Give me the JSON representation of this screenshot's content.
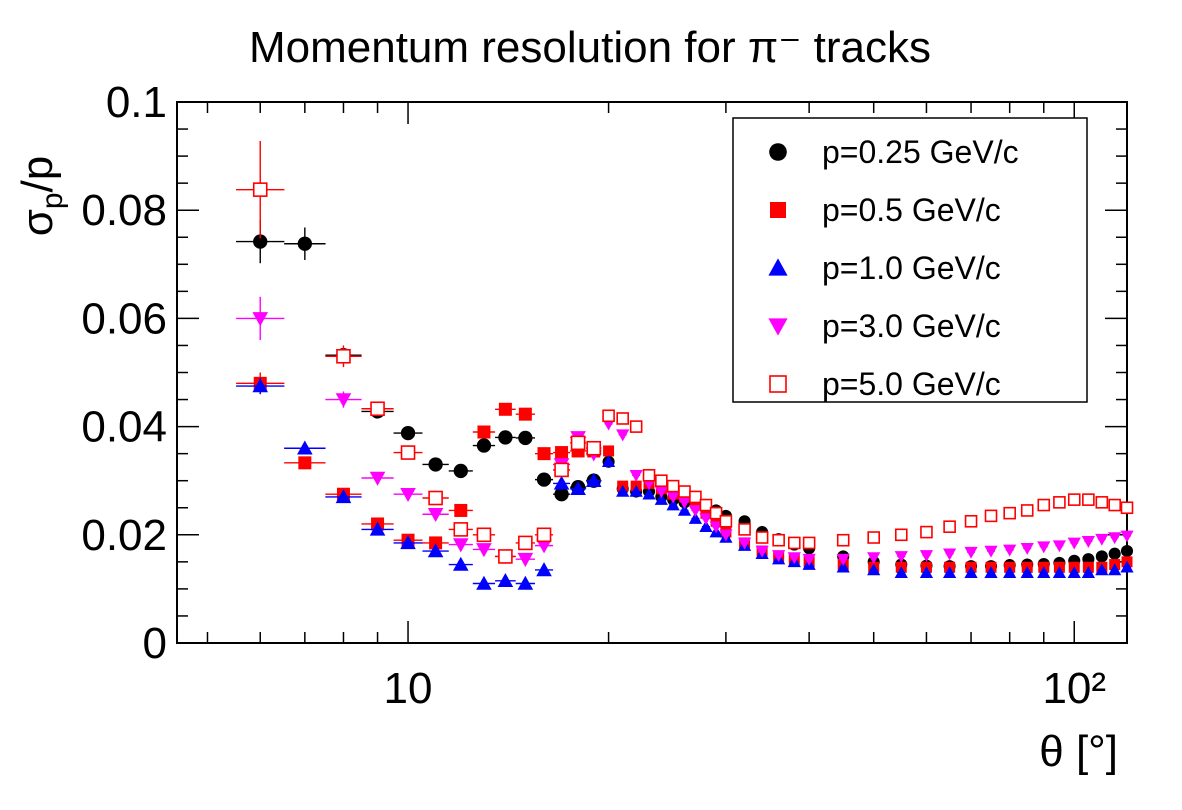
{
  "chart_data": {
    "type": "scatter",
    "title": "Momentum resolution for π⁻ tracks",
    "xlabel": "θ [°]",
    "ylabel": "σp/p",
    "ylabel_main": "σ",
    "ylabel_sub": "p",
    "ylabel_tail": "/p",
    "xscale": "log",
    "xlim": [
      4.5,
      120
    ],
    "ylim": [
      0,
      0.1
    ],
    "grid": false,
    "legend_position": "top-right",
    "y_ticks": [
      "0",
      "0.02",
      "0.04",
      "0.06",
      "0.08",
      "0.1"
    ],
    "x_tick_labels": [
      "10",
      "10²"
    ],
    "series": [
      {
        "name": "p=0.25 GeV/c",
        "color": "#000000",
        "marker": "circle",
        "x": [
          6,
          7,
          8,
          9,
          10,
          11,
          12,
          13,
          14,
          15,
          16,
          17,
          18,
          19,
          20,
          21,
          22,
          23,
          24,
          25,
          26,
          27,
          28,
          29,
          30,
          32,
          34,
          36,
          38,
          40,
          45,
          50,
          55,
          60,
          65,
          70,
          75,
          80,
          85,
          90,
          95,
          100,
          105,
          110,
          115,
          120
        ],
        "y": [
          0.0742,
          0.0738,
          0.0532,
          0.0428,
          0.0388,
          0.033,
          0.0318,
          0.0365,
          0.038,
          0.0379,
          0.0302,
          0.0275,
          0.0288,
          0.03,
          0.0335,
          0.0285,
          0.028,
          0.028,
          0.027,
          0.0265,
          0.026,
          0.0255,
          0.025,
          0.0245,
          0.0235,
          0.0225,
          0.0205,
          0.0192,
          0.0182,
          0.0175,
          0.016,
          0.015,
          0.0145,
          0.0143,
          0.0142,
          0.0142,
          0.0142,
          0.0144,
          0.0145,
          0.0146,
          0.0148,
          0.0152,
          0.0155,
          0.016,
          0.0165,
          0.017
        ],
        "yerr": [
          0.004,
          0.003,
          0.001,
          0.0008,
          0.0008,
          0.0006,
          0.0006,
          0.0006,
          0.0006,
          0.0006,
          0.0006,
          0.0005,
          0.0005,
          0.0005,
          0.0005,
          0.0005,
          0.0005,
          0.0005,
          0.0005,
          0.0005,
          0.0005,
          0.0005,
          0.0005,
          0.0005,
          0.0005,
          0.0004,
          0.0004,
          0.0004,
          0.0004,
          0.0004,
          0.0004,
          0.0004,
          0.0004,
          0.0004,
          0.0004,
          0.0004,
          0.0004,
          0.0004,
          0.0004,
          0.0004,
          0.0004,
          0.0004,
          0.0004,
          0.0004,
          0.0004,
          0.0004
        ]
      },
      {
        "name": "p=0.5 GeV/c",
        "color": "#ff0000",
        "marker": "square",
        "x": [
          6,
          7,
          8,
          9,
          10,
          11,
          12,
          13,
          14,
          15,
          16,
          17,
          18,
          19,
          20,
          21,
          22,
          23,
          24,
          25,
          26,
          27,
          28,
          29,
          30,
          32,
          34,
          36,
          38,
          40,
          45,
          50,
          55,
          60,
          65,
          70,
          75,
          80,
          85,
          90,
          95,
          100,
          105,
          110,
          115,
          120
        ],
        "y": [
          0.048,
          0.0333,
          0.0275,
          0.022,
          0.019,
          0.0185,
          0.0245,
          0.039,
          0.0432,
          0.0423,
          0.035,
          0.0352,
          0.0355,
          0.0355,
          0.0355,
          0.029,
          0.029,
          0.0295,
          0.0285,
          0.0275,
          0.027,
          0.026,
          0.024,
          0.0225,
          0.0205,
          0.0185,
          0.017,
          0.016,
          0.0155,
          0.015,
          0.0145,
          0.014,
          0.014,
          0.014,
          0.014,
          0.014,
          0.014,
          0.014,
          0.014,
          0.014,
          0.014,
          0.014,
          0.014,
          0.014,
          0.0145,
          0.015
        ],
        "yerr": [
          0.002,
          0.001,
          0.0008,
          0.0006,
          0.0006,
          0.0006,
          0.0006,
          0.0008,
          0.0008,
          0.0008,
          0.0006,
          0.0006,
          0.0006,
          0.0006,
          0.0006,
          0.0005,
          0.0005,
          0.0005,
          0.0005,
          0.0005,
          0.0005,
          0.0005,
          0.0005,
          0.0005,
          0.0004,
          0.0004,
          0.0004,
          0.0004,
          0.0004,
          0.0004,
          0.0004,
          0.0004,
          0.0004,
          0.0004,
          0.0004,
          0.0004,
          0.0004,
          0.0004,
          0.0004,
          0.0004,
          0.0004,
          0.0004,
          0.0004,
          0.0004,
          0.0004,
          0.0004
        ]
      },
      {
        "name": "p=1.0 GeV/c",
        "color": "#0000ff",
        "marker": "triangle-up",
        "x": [
          6,
          7,
          8,
          9,
          10,
          11,
          12,
          13,
          14,
          15,
          16,
          17,
          18,
          19,
          20,
          21,
          22,
          23,
          24,
          25,
          26,
          27,
          28,
          29,
          30,
          32,
          34,
          36,
          38,
          40,
          45,
          50,
          55,
          60,
          65,
          70,
          75,
          80,
          85,
          90,
          95,
          100,
          105,
          110,
          115,
          120
        ],
        "y": [
          0.0475,
          0.036,
          0.027,
          0.021,
          0.0185,
          0.017,
          0.0145,
          0.011,
          0.0115,
          0.011,
          0.0135,
          0.0295,
          0.0285,
          0.03,
          0.0335,
          0.028,
          0.028,
          0.0275,
          0.0265,
          0.0255,
          0.0245,
          0.023,
          0.0215,
          0.0205,
          0.0195,
          0.018,
          0.0165,
          0.0155,
          0.015,
          0.0145,
          0.014,
          0.0135,
          0.013,
          0.013,
          0.013,
          0.013,
          0.013,
          0.013,
          0.013,
          0.013,
          0.013,
          0.013,
          0.013,
          0.0135,
          0.0135,
          0.014
        ],
        "yerr": [
          0.0015,
          0.001,
          0.0008,
          0.0006,
          0.0006,
          0.0006,
          0.0006,
          0.0006,
          0.0006,
          0.0006,
          0.0006,
          0.0005,
          0.0005,
          0.0005,
          0.0005,
          0.0005,
          0.0005,
          0.0005,
          0.0005,
          0.0005,
          0.0005,
          0.0005,
          0.0005,
          0.0005,
          0.0004,
          0.0004,
          0.0004,
          0.0004,
          0.0004,
          0.0004,
          0.0004,
          0.0004,
          0.0004,
          0.0004,
          0.0004,
          0.0004,
          0.0004,
          0.0004,
          0.0004,
          0.0004,
          0.0004,
          0.0004,
          0.0004,
          0.0004,
          0.0004,
          0.0004
        ]
      },
      {
        "name": "p=3.0 GeV/c",
        "color": "#ff00ff",
        "marker": "triangle-down",
        "x": [
          6,
          8,
          9,
          10,
          11,
          12,
          13,
          14,
          15,
          16,
          17,
          18,
          19,
          20,
          21,
          22,
          23,
          24,
          25,
          26,
          27,
          28,
          29,
          30,
          32,
          34,
          36,
          38,
          40,
          45,
          50,
          55,
          60,
          65,
          70,
          75,
          80,
          85,
          90,
          95,
          100,
          105,
          110,
          115,
          120
        ],
        "y": [
          0.06,
          0.045,
          0.0305,
          0.0275,
          0.0238,
          0.0182,
          0.0173,
          0.016,
          0.0155,
          0.018,
          0.033,
          0.038,
          0.035,
          0.0405,
          0.0385,
          0.031,
          0.0295,
          0.028,
          0.027,
          0.026,
          0.0245,
          0.023,
          0.0215,
          0.02,
          0.0185,
          0.017,
          0.0162,
          0.0158,
          0.0155,
          0.0155,
          0.0158,
          0.016,
          0.0162,
          0.0165,
          0.0168,
          0.017,
          0.0172,
          0.0175,
          0.0178,
          0.018,
          0.0185,
          0.0188,
          0.0192,
          0.0195,
          0.0198
        ],
        "yerr": [
          0.004,
          0.0015,
          0.0008,
          0.0008,
          0.0006,
          0.0006,
          0.0006,
          0.0006,
          0.0006,
          0.0006,
          0.0008,
          0.0008,
          0.0008,
          0.0008,
          0.0008,
          0.0006,
          0.0006,
          0.0006,
          0.0005,
          0.0005,
          0.0005,
          0.0005,
          0.0005,
          0.0005,
          0.0004,
          0.0004,
          0.0004,
          0.0004,
          0.0004,
          0.0004,
          0.0004,
          0.0004,
          0.0004,
          0.0004,
          0.0004,
          0.0004,
          0.0004,
          0.0004,
          0.0004,
          0.0004,
          0.0004,
          0.0004,
          0.0004,
          0.0004,
          0.0004
        ]
      },
      {
        "name": "p=5.0 GeV/c",
        "color": "#ff0000",
        "marker": "open-square",
        "x": [
          6,
          8,
          9,
          10,
          11,
          12,
          13,
          14,
          15,
          16,
          17,
          18,
          19,
          20,
          21,
          22,
          23,
          24,
          25,
          26,
          27,
          28,
          29,
          30,
          32,
          34,
          36,
          38,
          40,
          45,
          50,
          55,
          60,
          65,
          70,
          75,
          80,
          85,
          90,
          95,
          100,
          105,
          110,
          115,
          120
        ],
        "y": [
          0.0838,
          0.053,
          0.0433,
          0.0352,
          0.0268,
          0.021,
          0.02,
          0.016,
          0.0185,
          0.02,
          0.032,
          0.037,
          0.036,
          0.042,
          0.0415,
          0.04,
          0.031,
          0.03,
          0.029,
          0.028,
          0.027,
          0.0255,
          0.024,
          0.0225,
          0.021,
          0.0195,
          0.019,
          0.0185,
          0.0185,
          0.019,
          0.0195,
          0.02,
          0.0205,
          0.0215,
          0.0225,
          0.0235,
          0.024,
          0.0245,
          0.0255,
          0.026,
          0.0265,
          0.0265,
          0.026,
          0.0255,
          0.025
        ],
        "yerr": [
          0.009,
          0.002,
          0.001,
          0.0008,
          0.0008,
          0.0006,
          0.0006,
          0.0006,
          0.0006,
          0.0006,
          0.001,
          0.001,
          0.001,
          0.001,
          0.001,
          0.0008,
          0.0008,
          0.0008,
          0.0006,
          0.0006,
          0.0006,
          0.0006,
          0.0006,
          0.0005,
          0.0005,
          0.0005,
          0.0005,
          0.0005,
          0.0005,
          0.0005,
          0.0005,
          0.0005,
          0.0005,
          0.0005,
          0.0005,
          0.0005,
          0.0005,
          0.0005,
          0.0005,
          0.0005,
          0.0005,
          0.0005,
          0.0005,
          0.0005,
          0.0005
        ]
      }
    ]
  }
}
